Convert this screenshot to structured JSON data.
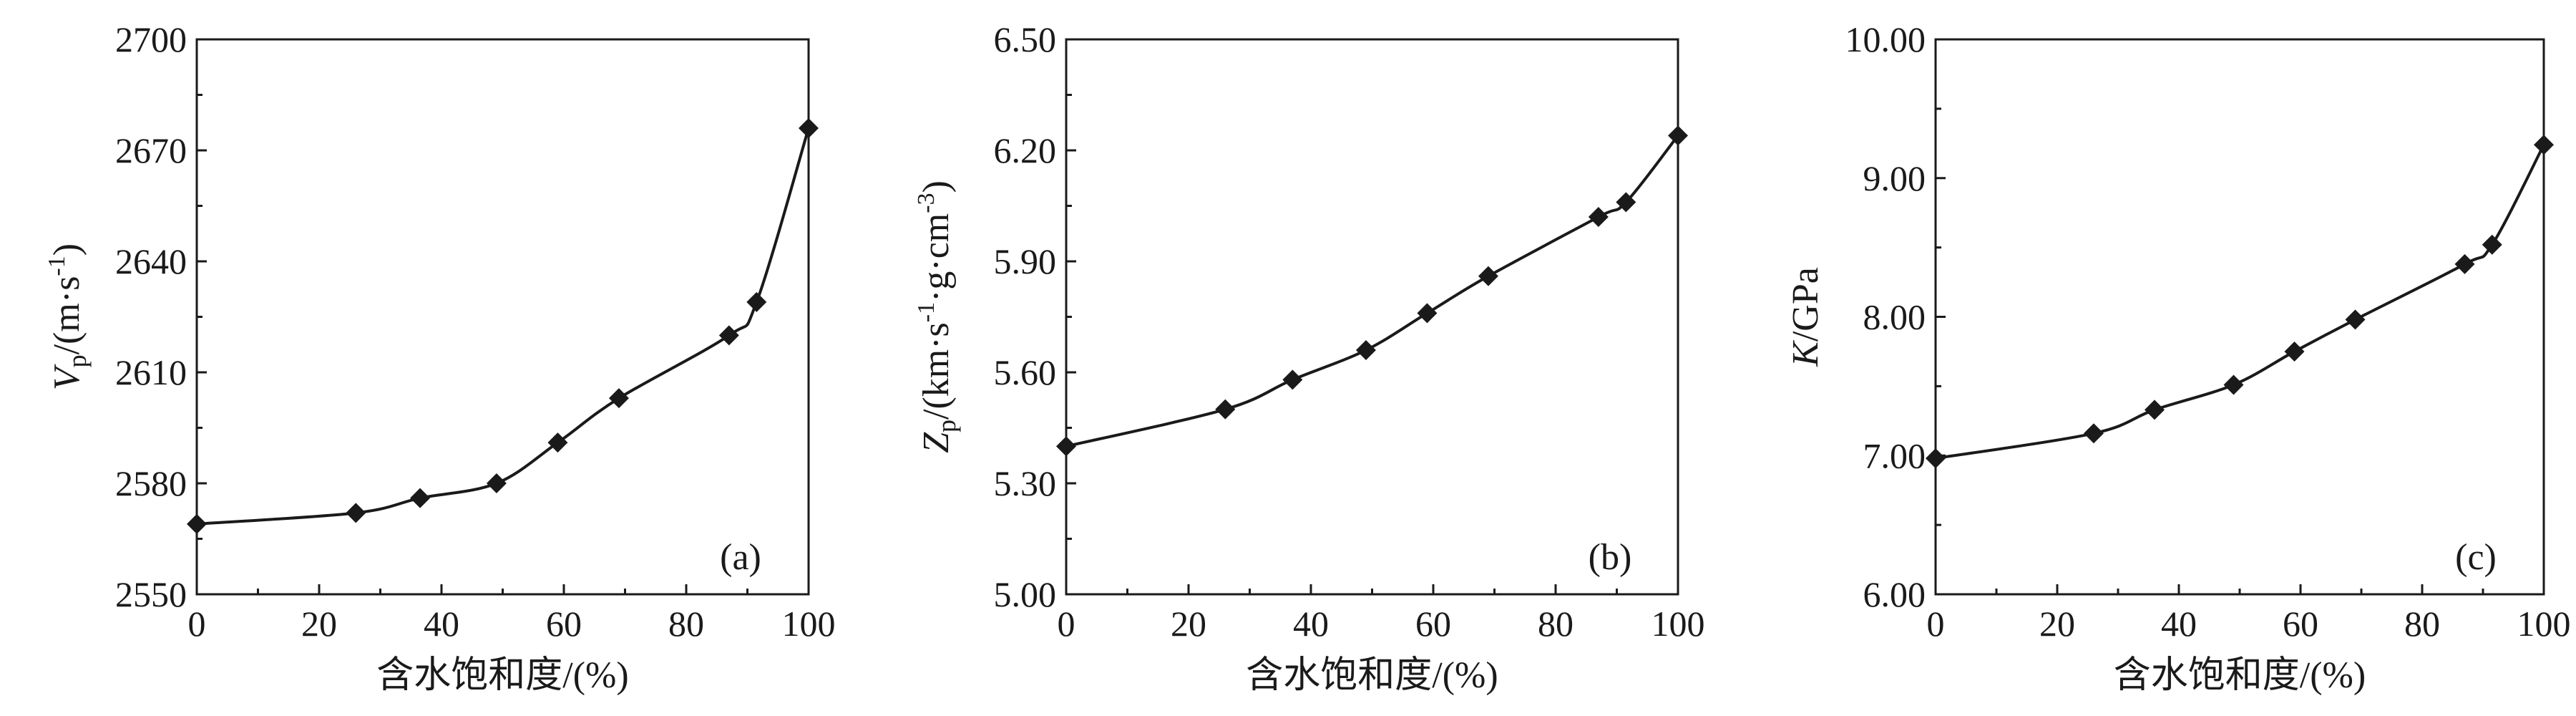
{
  "chart_data": [
    {
      "type": "line",
      "panel_label": "(a)",
      "xlabel": "含水饱和度/(%)",
      "ylabel": {
        "var": "V",
        "sub": "p",
        "unit_pre": "/(m·s",
        "unit_sup": "-1",
        "unit_post": ")"
      },
      "xlim": [
        0,
        100
      ],
      "ylim": [
        2550,
        2700
      ],
      "xticks": [
        "0",
        "20",
        "40",
        "60",
        "80",
        "100"
      ],
      "yticks": [
        "2550",
        "2580",
        "2610",
        "2640",
        "2670",
        "2700"
      ],
      "x": [
        0,
        26,
        36.5,
        49,
        59,
        69,
        87,
        91.5,
        100
      ],
      "y": [
        2569,
        2572,
        2576,
        2580,
        2591,
        2603,
        2620,
        2629,
        2676
      ],
      "marker": "diamond",
      "line_color": "#1a1a1a"
    },
    {
      "type": "line",
      "panel_label": "(b)",
      "xlabel": "含水饱和度/(%)",
      "ylabel": {
        "var": "Z",
        "sub": "p",
        "unit_pre": "/(km·s",
        "unit_sup": "-1",
        "unit_mid": "·g·cm",
        "unit_sup2": "-3",
        "unit_post": ")"
      },
      "xlim": [
        0,
        100
      ],
      "ylim": [
        5.0,
        6.5
      ],
      "xticks": [
        "0",
        "20",
        "40",
        "60",
        "80",
        "100"
      ],
      "yticks": [
        "5.00",
        "5.30",
        "5.60",
        "5.90",
        "6.20",
        "6.50"
      ],
      "x": [
        0,
        26,
        37,
        49,
        59,
        69,
        87,
        91.5,
        100
      ],
      "y": [
        5.4,
        5.5,
        5.58,
        5.66,
        5.76,
        5.86,
        6.02,
        6.06,
        6.24
      ],
      "marker": "diamond",
      "line_color": "#1a1a1a"
    },
    {
      "type": "line",
      "panel_label": "(c)",
      "xlabel": "含水饱和度/(%)",
      "ylabel": {
        "var": "K",
        "sub": "",
        "unit_pre": "/GPa",
        "unit_sup": "",
        "unit_post": ""
      },
      "xlim": [
        0,
        100
      ],
      "ylim": [
        6.0,
        10.0
      ],
      "xticks": [
        "0",
        "20",
        "40",
        "60",
        "80",
        "100"
      ],
      "yticks": [
        "6.00",
        "7.00",
        "8.00",
        "9.00",
        "10.00"
      ],
      "x": [
        0,
        26,
        36,
        49,
        59,
        69,
        87,
        91.5,
        100
      ],
      "y": [
        6.98,
        7.16,
        7.33,
        7.51,
        7.75,
        7.98,
        8.38,
        8.52,
        9.24
      ],
      "marker": "diamond",
      "line_color": "#1a1a1a"
    }
  ]
}
